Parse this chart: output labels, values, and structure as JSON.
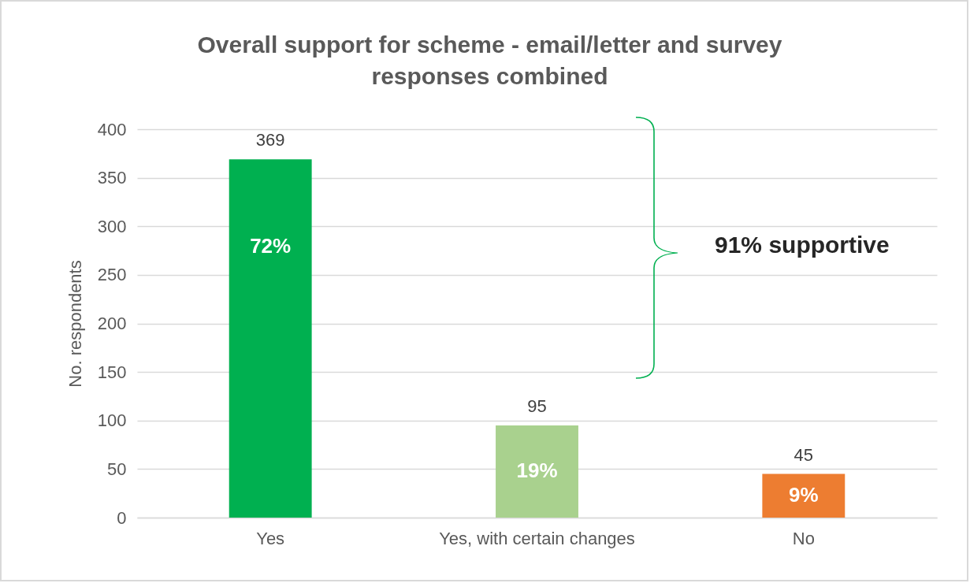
{
  "chart_data": {
    "type": "bar",
    "title": "Overall support for scheme - email/letter and survey responses combined",
    "ylabel": "No. respondents",
    "categories": [
      "Yes",
      "Yes, with certain changes",
      "No"
    ],
    "values": [
      369,
      95,
      45
    ],
    "colors": [
      "#00b050",
      "#a9d18e",
      "#ed7d31"
    ],
    "ylim": [
      0,
      400
    ],
    "yticks": [
      0,
      50,
      100,
      150,
      200,
      250,
      300,
      350,
      400
    ],
    "grid": "y",
    "data_labels": true,
    "annotations": [
      "72%",
      "19%",
      "9%",
      "91% supportive"
    ]
  }
}
